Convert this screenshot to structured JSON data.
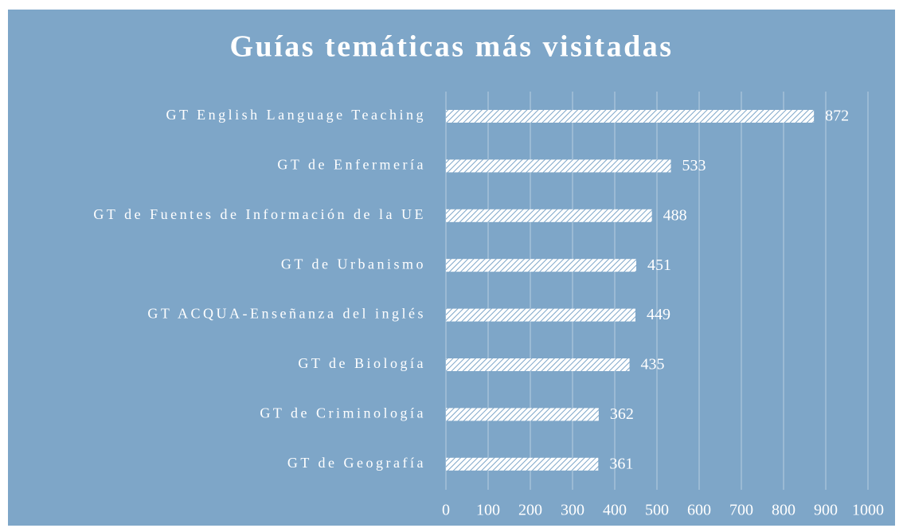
{
  "chart_data": {
    "type": "bar",
    "orientation": "horizontal",
    "title": "Guías temáticas más visitadas",
    "categories": [
      "GT English Language Teaching",
      "GT de Enfermería",
      "GT de Fuentes de Información de la UE",
      "GT de Urbanismo",
      "GT ACQUA-Enseñanza del inglés",
      "GT de Biología",
      "GT de Criminología",
      "GT de Geografía"
    ],
    "values": [
      872,
      533,
      488,
      451,
      449,
      435,
      362,
      361
    ],
    "color": "#ffffff",
    "xlim": [
      0,
      1000
    ],
    "xticks": [
      0,
      100,
      200,
      300,
      400,
      500,
      600,
      700,
      800,
      900,
      1000
    ],
    "grid": true
  }
}
